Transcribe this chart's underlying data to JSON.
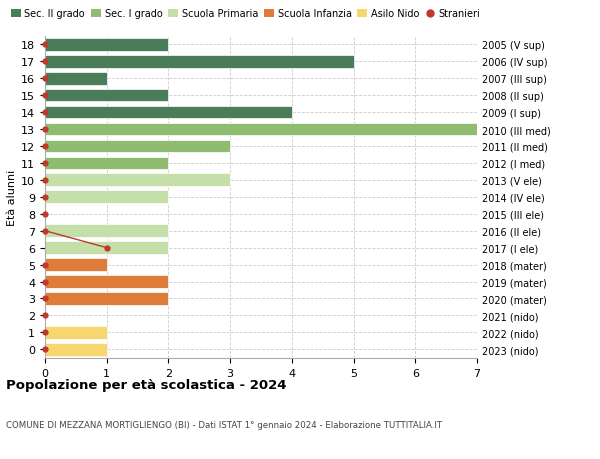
{
  "ages": [
    18,
    17,
    16,
    15,
    14,
    13,
    12,
    11,
    10,
    9,
    8,
    7,
    6,
    5,
    4,
    3,
    2,
    1,
    0
  ],
  "right_labels": [
    "2005 (V sup)",
    "2006 (IV sup)",
    "2007 (III sup)",
    "2008 (II sup)",
    "2009 (I sup)",
    "2010 (III med)",
    "2011 (II med)",
    "2012 (I med)",
    "2013 (V ele)",
    "2014 (IV ele)",
    "2015 (III ele)",
    "2016 (II ele)",
    "2017 (I ele)",
    "2018 (mater)",
    "2019 (mater)",
    "2020 (mater)",
    "2021 (nido)",
    "2022 (nido)",
    "2023 (nido)"
  ],
  "bar_values": [
    2,
    5,
    1,
    2,
    4,
    7,
    3,
    2,
    3,
    2,
    0,
    2,
    2,
    1,
    2,
    2,
    0,
    1,
    1
  ],
  "bar_colors": [
    "#4a7c59",
    "#4a7c59",
    "#4a7c59",
    "#4a7c59",
    "#4a7c59",
    "#8fbc6e",
    "#8fbc6e",
    "#8fbc6e",
    "#c5dfa8",
    "#c5dfa8",
    "#c5dfa8",
    "#c5dfa8",
    "#c5dfa8",
    "#e07c3a",
    "#e07c3a",
    "#e07c3a",
    "#f5d76e",
    "#f5d76e",
    "#f5d76e"
  ],
  "stranieri_dots_ages": [
    18,
    17,
    16,
    15,
    14,
    13,
    12,
    11,
    10,
    9,
    8,
    7,
    5,
    4,
    3,
    2,
    1,
    0
  ],
  "stranieri_special": [
    [
      6,
      1
    ]
  ],
  "stranieri_line_x": [
    0,
    1
  ],
  "stranieri_line_y": [
    7,
    6
  ],
  "legend_labels": [
    "Sec. II grado",
    "Sec. I grado",
    "Scuola Primaria",
    "Scuola Infanzia",
    "Asilo Nido",
    "Stranieri"
  ],
  "legend_colors": [
    "#4a7c59",
    "#8fbc6e",
    "#c5dfa8",
    "#e07c3a",
    "#f5d76e",
    "#c0392b"
  ],
  "title": "Popolazione per età scolastica - 2024",
  "subtitle": "COMUNE DI MEZZANA MORTIGLIENGO (BI) - Dati ISTAT 1° gennaio 2024 - Elaborazione TUTTITALIA.IT",
  "ylabel_left": "Età alunni",
  "xlim": [
    0,
    7
  ],
  "xticks": [
    0,
    1,
    2,
    3,
    4,
    5,
    6,
    7
  ],
  "ylim": [
    -0.5,
    18.5
  ],
  "background_color": "#ffffff",
  "grid_color": "#cccccc",
  "stranieri_color": "#c0392b",
  "bar_height": 0.75
}
